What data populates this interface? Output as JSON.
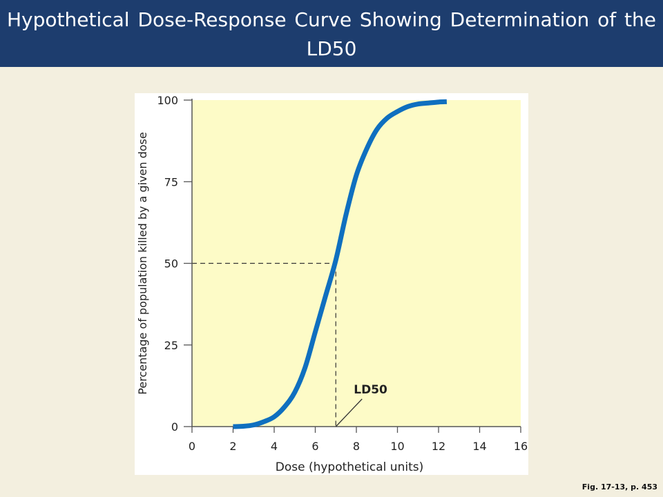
{
  "slide": {
    "title": "Hypothetical Dose-Response Curve Showing Determination of the LD50",
    "figure_reference": "Fig. 17-13, p. 453"
  },
  "colors": {
    "title_bar": "#1d3d6e",
    "slide_background": "#f3efdf",
    "plot_background": "#fdfbc7",
    "curve": "#0f6fbf",
    "reference_lines": "#333333"
  },
  "chart_data": {
    "type": "line",
    "title": "",
    "xlabel": "Dose (hypothetical units)",
    "ylabel": "Percentage of population killed by a given dose",
    "xlim": [
      0,
      16
    ],
    "ylim": [
      0,
      100
    ],
    "x_ticks": [
      0,
      2,
      4,
      6,
      8,
      10,
      12,
      14,
      16
    ],
    "y_ticks": [
      0,
      25,
      50,
      75,
      100
    ],
    "grid": false,
    "series": [
      {
        "x": [
          2,
          2.5,
          3,
          3.5,
          4,
          4.5,
          5,
          5.5,
          6,
          6.5,
          7,
          7.5,
          8,
          8.5,
          9,
          9.5,
          10,
          10.5,
          11,
          11.5,
          12,
          12.4
        ],
        "values": [
          0,
          0.1,
          0.5,
          1.5,
          3,
          6,
          10.5,
          18,
          29,
          40,
          51,
          65,
          77,
          85,
          91,
          94.5,
          96.5,
          98,
          98.8,
          99.1,
          99.4,
          99.5
        ]
      }
    ],
    "annotations": [
      {
        "label": "LD50",
        "x": 7,
        "y": 50
      }
    ]
  }
}
